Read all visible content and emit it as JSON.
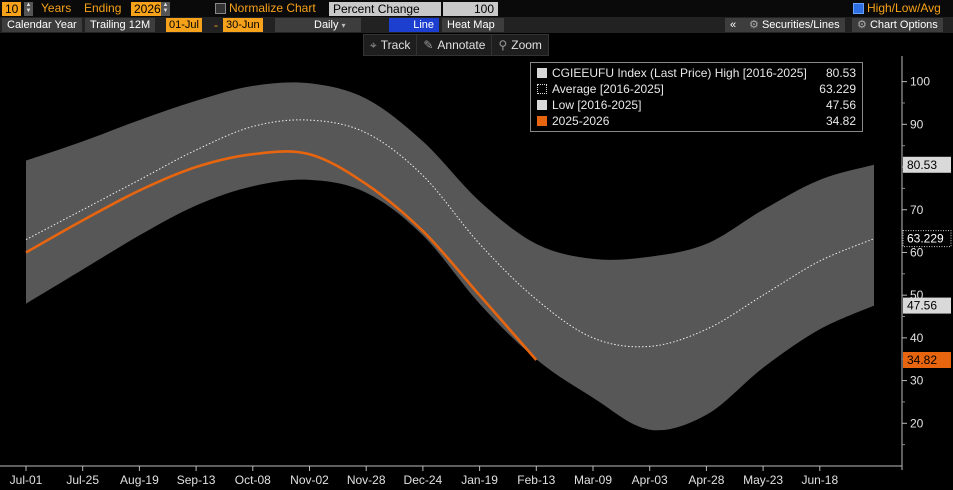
{
  "header": {
    "years_value": "10",
    "years_label": "Years",
    "ending_label": "Ending",
    "ending_value": "2026",
    "normalize_label": "Normalize Chart",
    "mode_value": "Percent Change",
    "base_value": "100",
    "hla_label": "High/Low/Avg"
  },
  "subbar": {
    "calendar_year": "Calendar Year",
    "trailing": "Trailing 12M",
    "start_date": "01-Jul",
    "end_date": "30-Jun",
    "period": "Daily",
    "line_tab": "Line",
    "heatmap_tab": "Heat Map",
    "collapse": "«",
    "securities": "Securities/Lines",
    "chart_options": "Chart Options"
  },
  "toolbar": {
    "track": "Track",
    "annotate": "Annotate",
    "zoom": "Zoom"
  },
  "colors": {
    "accent": "#f6a21a",
    "series": "#e8650f",
    "band": "#555555",
    "background": "#000000"
  },
  "chart_data": {
    "type": "area",
    "x_ticks": [
      "Jul-01",
      "Jul-25",
      "Aug-19",
      "Sep-13",
      "Oct-08",
      "Nov-02",
      "Nov-28",
      "Dec-24",
      "Jan-19",
      "Feb-13",
      "Mar-09",
      "Apr-03",
      "Apr-28",
      "May-23",
      "Jun-18"
    ],
    "y_ticks": [
      20,
      30,
      40,
      50,
      60,
      70,
      80,
      90,
      100
    ],
    "ylim": [
      10,
      106
    ],
    "x": [
      "Jul-01",
      "Jul-25",
      "Aug-19",
      "Sep-13",
      "Oct-08",
      "Nov-02",
      "Nov-28",
      "Dec-24",
      "Jan-19",
      "Feb-13",
      "Mar-09",
      "Apr-03",
      "Apr-28",
      "May-23",
      "Jun-18",
      "Jun-30"
    ],
    "series": [
      {
        "name": "CGIEEUFU Index (Last Price) High [2016-2025]",
        "legend_value": "80.53",
        "values": [
          81.5,
          86,
          91,
          95.5,
          99,
          99.6,
          96,
          86,
          72,
          62,
          58.5,
          59,
          62,
          70,
          77,
          80.53
        ]
      },
      {
        "name": "Average  [2016-2025]",
        "legend_value": "63.229",
        "values": [
          63,
          70,
          77,
          84,
          89.5,
          91,
          88,
          78,
          62,
          49,
          40,
          38,
          42,
          50,
          58,
          63.229
        ]
      },
      {
        "name": "Low  [2016-2025]",
        "legend_value": "47.56",
        "values": [
          48,
          56,
          64,
          71,
          75.5,
          77,
          74,
          64,
          48,
          35,
          26,
          18.5,
          22,
          33,
          42,
          47.56
        ]
      },
      {
        "name": "2025-2026",
        "legend_value": "34.82",
        "x": [
          "Jul-01",
          "Jul-25",
          "Aug-19",
          "Sep-13",
          "Oct-08",
          "Nov-02",
          "Nov-28",
          "Dec-24",
          "Jan-19",
          "Feb-13"
        ],
        "values": [
          60,
          67.5,
          74.5,
          80,
          83,
          83,
          76,
          65,
          50,
          34.82
        ]
      }
    ],
    "last_labels": [
      "80.53",
      "63.229",
      "47.56",
      "34.82"
    ],
    "legend": "top-right",
    "grid": false
  }
}
